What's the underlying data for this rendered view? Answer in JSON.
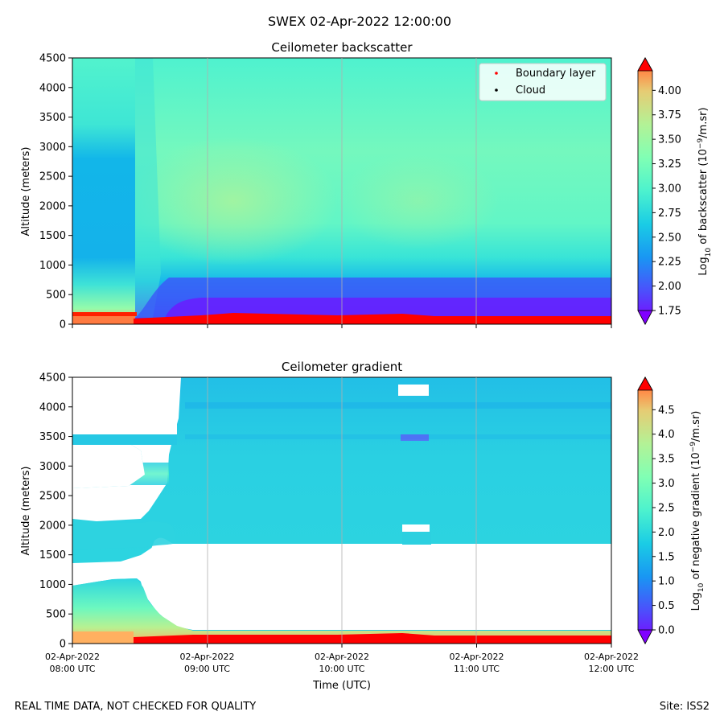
{
  "suptitle": "SWEX 02-Apr-2022 12:00:00",
  "footer": {
    "left": "REAL TIME DATA, NOT CHECKED FOR QUALITY",
    "right": "Site: ISS2"
  },
  "chart_data": [
    {
      "type": "heatmap",
      "title": "Ceilometer backscatter",
      "xlabel": "",
      "ylabel": "Altitude (meters)",
      "ylim": [
        0,
        4500
      ],
      "yticks": [
        "0",
        "500",
        "1000",
        "1500",
        "2000",
        "2500",
        "3000",
        "3500",
        "4000",
        "4500"
      ],
      "xlim_hours_utc": [
        8,
        12
      ],
      "xgrid_hours_utc": [
        9,
        10,
        11
      ],
      "colormap": "rainbow",
      "colorbar": {
        "label": "Log10 of backscatter (10^-9/m.sr)",
        "range": [
          1.75,
          4.2
        ],
        "ticks": [
          "1.75",
          "2.00",
          "2.25",
          "2.50",
          "2.75",
          "3.00",
          "3.25",
          "3.50",
          "3.75",
          "4.00"
        ],
        "extend": "both"
      },
      "legend": {
        "position": "top-right",
        "entries": [
          {
            "label": "Boundary layer",
            "color": "#ff0000"
          },
          {
            "label": "Cloud",
            "color": "#000000"
          }
        ]
      }
    },
    {
      "type": "heatmap",
      "title": "Ceilometer gradient",
      "xlabel": "Time (UTC)",
      "ylabel": "Altitude (meters)",
      "ylim": [
        0,
        4500
      ],
      "yticks": [
        "0",
        "500",
        "1000",
        "1500",
        "2000",
        "2500",
        "3000",
        "3500",
        "4000",
        "4500"
      ],
      "xticks": [
        {
          "date": "02-Apr-2022",
          "time": "08:00 UTC"
        },
        {
          "date": "02-Apr-2022",
          "time": "09:00 UTC"
        },
        {
          "date": "02-Apr-2022",
          "time": "10:00 UTC"
        },
        {
          "date": "02-Apr-2022",
          "time": "11:00 UTC"
        },
        {
          "date": "02-Apr-2022",
          "time": "12:00 UTC"
        }
      ],
      "xgrid_hours_utc": [
        9,
        10,
        11
      ],
      "colormap": "rainbow",
      "colorbar": {
        "label": "Log10 of negative gradient (10^-9/m.sr)",
        "range": [
          0,
          4.9
        ],
        "ticks": [
          "0.0",
          "0.5",
          "1.0",
          "1.5",
          "2.0",
          "2.5",
          "3.0",
          "3.5",
          "4.0",
          "4.5"
        ],
        "extend": "both"
      }
    }
  ]
}
